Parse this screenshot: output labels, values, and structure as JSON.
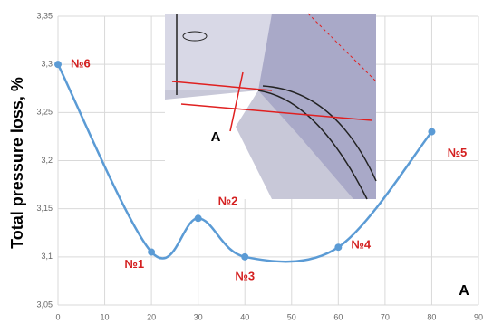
{
  "chart_data": {
    "type": "line",
    "y_label": "Total pressure loss, %",
    "x_label": "A",
    "inset_label": "A",
    "x": [
      0,
      20,
      30,
      40,
      60,
      80
    ],
    "series": [
      {
        "color": "#5b9bd5",
        "values": [
          3.3,
          3.105,
          3.14,
          3.1,
          3.11,
          3.23
        ]
      }
    ],
    "point_labels": [
      "№6",
      "№1",
      "№2",
      "№3",
      "№4",
      "№5"
    ],
    "xlim": [
      0,
      90
    ],
    "xticks": [
      0,
      10,
      20,
      30,
      40,
      50,
      60,
      70,
      80,
      90
    ],
    "ylim": [
      3.05,
      3.35
    ],
    "yticks": [
      {
        "value": 3.05,
        "label": "3,05"
      },
      {
        "value": 3.1,
        "label": "3,1"
      },
      {
        "value": 3.15,
        "label": "3,15"
      },
      {
        "value": 3.2,
        "label": "3,2"
      },
      {
        "value": 3.25,
        "label": "3,25"
      },
      {
        "value": 3.3,
        "label": "3,3"
      },
      {
        "value": 3.35,
        "label": "3,35"
      }
    ],
    "grid": true
  }
}
